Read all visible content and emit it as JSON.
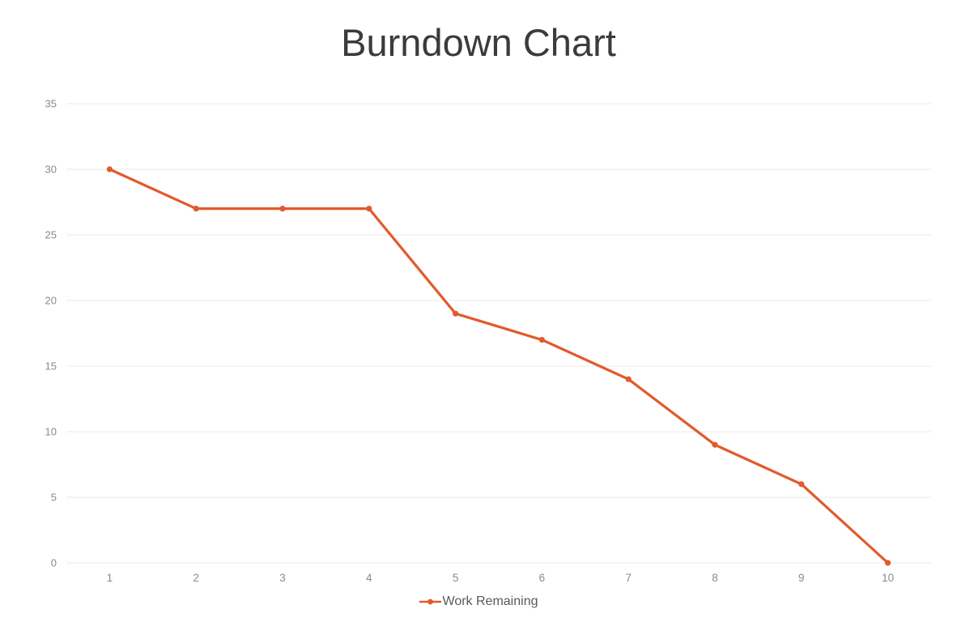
{
  "chart_data": {
    "type": "line",
    "title": "Burndown Chart",
    "categories": [
      "1",
      "2",
      "3",
      "4",
      "5",
      "6",
      "7",
      "8",
      "9",
      "10"
    ],
    "series": [
      {
        "name": "Work Remaining",
        "values": [
          30,
          27,
          27,
          27,
          19,
          17,
          14,
          9,
          6,
          0
        ]
      }
    ],
    "xlabel": "",
    "ylabel": "",
    "ylim": [
      0,
      35
    ],
    "y_ticks": [
      0,
      5,
      10,
      15,
      20,
      25,
      30,
      35
    ],
    "grid": "horizontal",
    "legend_position": "bottom",
    "marker": "circle"
  },
  "colors": {
    "accent": "#E25A2B",
    "title_text": "#3B3B3B",
    "axis_labels": "#8A8A8A",
    "gridlines": "#E8E8E8",
    "legend_text": "#595959"
  }
}
